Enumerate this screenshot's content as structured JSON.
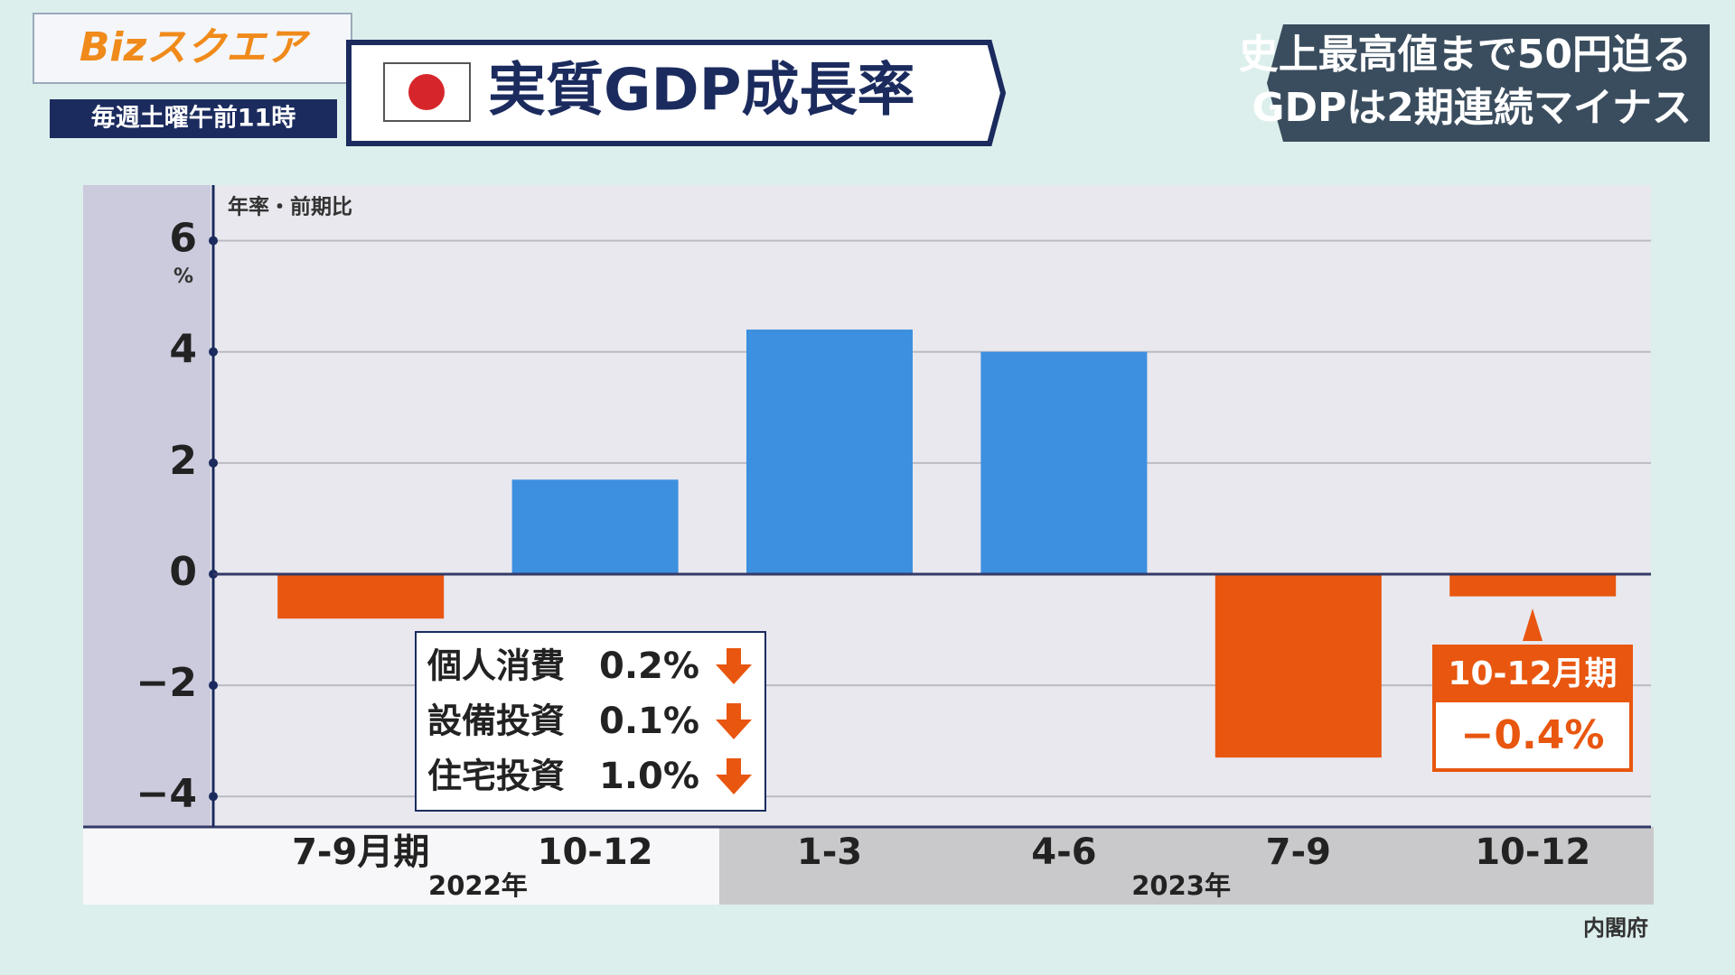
{
  "header": {
    "logo": "Bizスクエア",
    "schedule": "毎週土曜午前11時",
    "headline": [
      "史上最高値まで50円迫る",
      "GDPは2期連続マイナス"
    ]
  },
  "chart_data": {
    "type": "bar",
    "title": "実質GDP成長率",
    "y_axis_label": "年率・前期比",
    "y_unit": "%",
    "categories": [
      "7-9月期",
      "10-12",
      "1-3",
      "4-6",
      "7-9",
      "10-12"
    ],
    "years": [
      {
        "label": "2022年",
        "categories": [
          0,
          1
        ]
      },
      {
        "label": "2023年",
        "categories": [
          2,
          5
        ]
      }
    ],
    "values": [
      -0.8,
      1.7,
      4.4,
      4.0,
      -3.3,
      -0.4
    ],
    "colors": [
      "#e8560f",
      "#3d8fe0",
      "#3d8fe0",
      "#3d8fe0",
      "#e8560f",
      "#e8560f"
    ],
    "value_labels": [
      null,
      null,
      null,
      null,
      null,
      "−0.4%"
    ],
    "callout": "10-12月期",
    "ylim": [
      -4.5,
      7
    ],
    "yticks": [
      {
        "value": -4,
        "label": "−4"
      },
      {
        "value": -2,
        "label": "−2"
      },
      0,
      2,
      4,
      6
    ],
    "grid": true,
    "breakdown": [
      {
        "name": "個人消費",
        "label": "0.2%"
      },
      {
        "name": "設備投資",
        "label": "0.1%"
      },
      {
        "name": "住宅投資",
        "label": "1.0%"
      }
    ],
    "source": "内閣府"
  }
}
